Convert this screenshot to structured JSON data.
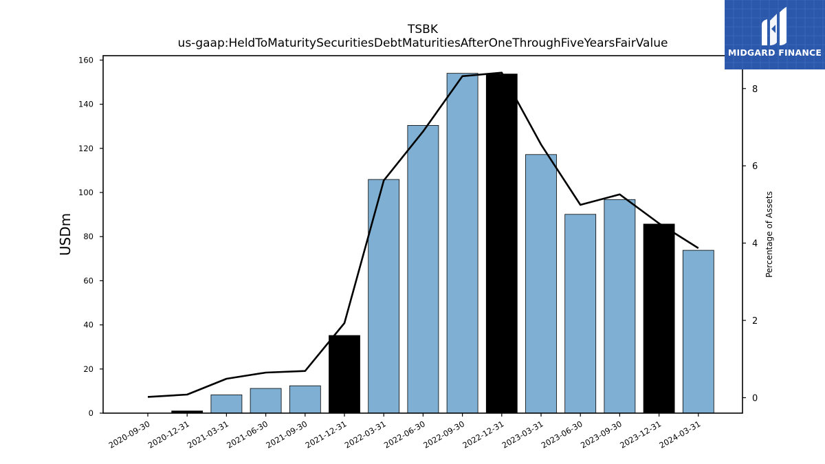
{
  "header": {
    "ticker": "TSBK",
    "concept": "us-gaap:HeldToMaturitySecuritiesDebtMaturitiesAfterOneThroughFiveYearsFairValue"
  },
  "logo": {
    "text": "MIDGARD FINANCE",
    "bg_color": "#2b58ab",
    "icon": "midgard-m-icon"
  },
  "chart_data": {
    "type": "bar",
    "categories": [
      "2020-09-30",
      "2020-12-31",
      "2021-03-31",
      "2021-06-30",
      "2021-09-30",
      "2021-12-31",
      "2022-03-31",
      "2022-06-30",
      "2022-09-30",
      "2022-12-31",
      "2023-03-31",
      "2023-06-30",
      "2023-09-30",
      "2023-12-31",
      "2024-03-31"
    ],
    "series": [
      {
        "kind": "bar",
        "axis": "left",
        "values": [
          0,
          1,
          8.3,
          11.2,
          12.4,
          35.2,
          105.9,
          130.4,
          154.0,
          153.7,
          117.2,
          90.1,
          96.8,
          85.7,
          73.8
        ],
        "highlight": [
          false,
          true,
          false,
          false,
          false,
          true,
          false,
          false,
          false,
          true,
          false,
          false,
          false,
          true,
          false
        ]
      },
      {
        "kind": "line",
        "axis": "right",
        "values": [
          0.02,
          0.08,
          0.49,
          0.65,
          0.69,
          1.93,
          5.62,
          6.89,
          8.32,
          8.41,
          6.55,
          4.99,
          5.26,
          4.51,
          3.87
        ]
      }
    ],
    "ylabel": "USDm",
    "ylabel_right": "Percentage of Assets",
    "ylim": [
      0,
      162
    ],
    "ylim_right": [
      -0.4,
      8.85
    ],
    "yticks": [
      0,
      20,
      40,
      60,
      80,
      100,
      120,
      140,
      160
    ],
    "yticks_right": [
      0,
      2,
      4,
      6,
      8
    ],
    "colors": {
      "bar": "#7fafd2",
      "bar_highlight": "#000000",
      "line": "#000000"
    },
    "grid": false,
    "legend": "none"
  }
}
